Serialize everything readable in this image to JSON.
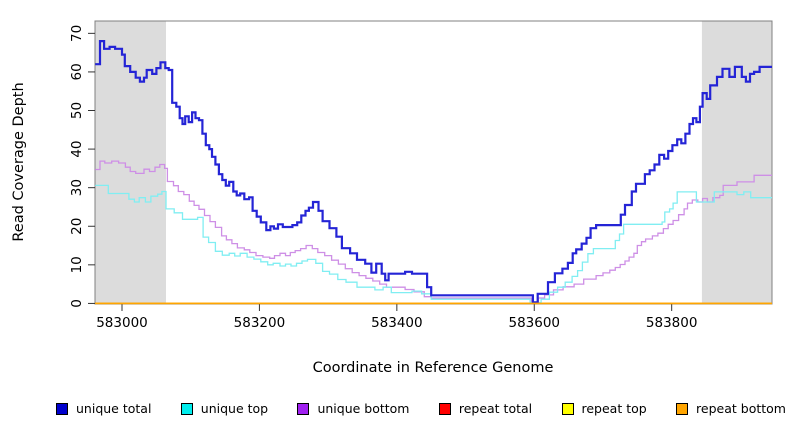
{
  "legend": {
    "items": [
      {
        "label": "unique total",
        "color": "#0000cd"
      },
      {
        "label": "unique top",
        "color": "#00eeee"
      },
      {
        "label": "unique bottom",
        "color": "#a020f0"
      },
      {
        "label": "repeat total",
        "color": "#ff0000"
      },
      {
        "label": "repeat top",
        "color": "#ffff00"
      },
      {
        "label": "repeat bottom",
        "color": "#ffa500"
      }
    ]
  },
  "chart_data": {
    "type": "line",
    "step": true,
    "title": "",
    "xlabel": "Coordinate in Reference Genome",
    "ylabel": "Read Coverage Depth",
    "xlim": [
      582960.7,
      583946
    ],
    "ylim": [
      -0.15,
      73.2
    ],
    "x_ticks": [
      583000,
      583200,
      583400,
      583600,
      583800
    ],
    "y_ticks": [
      0,
      10,
      20,
      30,
      40,
      50,
      60,
      70
    ],
    "grid": false,
    "legend_position": "bottom",
    "region_color": "#dcdcdc",
    "shaded_regions": [
      {
        "x0": 582961,
        "x1": 583064
      },
      {
        "x0": 583844,
        "x1": 583946
      }
    ],
    "series": [
      {
        "name": "repeat total",
        "color": "#ff0000",
        "width": 1.3,
        "points": [
          [
            582961,
            0
          ],
          [
            583946,
            0
          ]
        ]
      },
      {
        "name": "repeat top",
        "color": "#ffff00",
        "width": 1.3,
        "points": [
          [
            582961,
            0
          ],
          [
            583946,
            0
          ]
        ]
      },
      {
        "name": "unique bottom",
        "color": "#ce8fe6",
        "width": 1.3,
        "points": [
          [
            582961,
            34.7
          ],
          [
            582968,
            36.9
          ],
          [
            582975,
            36.4
          ],
          [
            582985,
            36.9
          ],
          [
            582995,
            36.4
          ],
          [
            583005,
            35.3
          ],
          [
            583012,
            34.2
          ],
          [
            583020,
            33.7
          ],
          [
            583032,
            34.8
          ],
          [
            583040,
            34.2
          ],
          [
            583048,
            35.3
          ],
          [
            583055,
            36
          ],
          [
            583062,
            35
          ],
          [
            583066,
            31.6
          ],
          [
            583075,
            30.5
          ],
          [
            583082,
            29
          ],
          [
            583090,
            28.2
          ],
          [
            583098,
            26.5
          ],
          [
            583105,
            25.4
          ],
          [
            583112,
            24.4
          ],
          [
            583120,
            22.8
          ],
          [
            583128,
            21.2
          ],
          [
            583136,
            19.7
          ],
          [
            583145,
            17.5
          ],
          [
            583152,
            16.5
          ],
          [
            583160,
            15.5
          ],
          [
            583168,
            14.4
          ],
          [
            583178,
            13.9
          ],
          [
            583186,
            13.2
          ],
          [
            583195,
            12.4
          ],
          [
            583205,
            12
          ],
          [
            583215,
            11.7
          ],
          [
            583222,
            12.4
          ],
          [
            583230,
            13
          ],
          [
            583238,
            12.4
          ],
          [
            583245,
            13.2
          ],
          [
            583252,
            13.7
          ],
          [
            583260,
            14.2
          ],
          [
            583268,
            15
          ],
          [
            583277,
            14.2
          ],
          [
            583285,
            13.2
          ],
          [
            583295,
            12.4
          ],
          [
            583305,
            11.2
          ],
          [
            583315,
            10.2
          ],
          [
            583325,
            9
          ],
          [
            583335,
            8
          ],
          [
            583345,
            7.2
          ],
          [
            583355,
            6.5
          ],
          [
            583365,
            5.8
          ],
          [
            583375,
            5
          ],
          [
            583385,
            4.2
          ],
          [
            583400,
            4.2
          ],
          [
            583412,
            3.6
          ],
          [
            583425,
            3
          ],
          [
            583440,
            1.75
          ],
          [
            583450,
            1.4
          ],
          [
            583596,
            0.3
          ],
          [
            583606,
            1.4
          ],
          [
            583615,
            2.2
          ],
          [
            583628,
            3.5
          ],
          [
            583642,
            4.3
          ],
          [
            583658,
            5
          ],
          [
            583672,
            6.3
          ],
          [
            583690,
            7.2
          ],
          [
            583700,
            7.9
          ],
          [
            583710,
            8.6
          ],
          [
            583718,
            9.3
          ],
          [
            583725,
            10.1
          ],
          [
            583732,
            11
          ],
          [
            583738,
            12
          ],
          [
            583745,
            13
          ],
          [
            583750,
            15
          ],
          [
            583756,
            16
          ],
          [
            583762,
            16.7
          ],
          [
            583772,
            17.5
          ],
          [
            583780,
            18.2
          ],
          [
            583788,
            19.4
          ],
          [
            583795,
            20.5
          ],
          [
            583802,
            21.5
          ],
          [
            583810,
            23
          ],
          [
            583818,
            24.5
          ],
          [
            583823,
            26
          ],
          [
            583830,
            26.8
          ],
          [
            583838,
            26.3
          ],
          [
            583845,
            27.2
          ],
          [
            583852,
            26.3
          ],
          [
            583860,
            27.4
          ],
          [
            583870,
            28
          ],
          [
            583875,
            30.6
          ],
          [
            583895,
            31.5
          ],
          [
            583920,
            33.2
          ],
          [
            583946,
            33.2
          ]
        ]
      },
      {
        "name": "unique top",
        "color": "#80eef2",
        "width": 1.3,
        "points": [
          [
            582961,
            30.6
          ],
          [
            582972,
            30.6
          ],
          [
            582980,
            28.5
          ],
          [
            583002,
            28.5
          ],
          [
            583010,
            27
          ],
          [
            583018,
            26.3
          ],
          [
            583025,
            27.4
          ],
          [
            583034,
            26.3
          ],
          [
            583042,
            27.8
          ],
          [
            583052,
            28.3
          ],
          [
            583058,
            29
          ],
          [
            583064,
            24.5
          ],
          [
            583076,
            23.5
          ],
          [
            583088,
            21.8
          ],
          [
            583102,
            21.8
          ],
          [
            583110,
            22.3
          ],
          [
            583118,
            17.2
          ],
          [
            583126,
            15.8
          ],
          [
            583136,
            13.5
          ],
          [
            583146,
            12.5
          ],
          [
            583156,
            13
          ],
          [
            583164,
            12.3
          ],
          [
            583172,
            13
          ],
          [
            583182,
            12
          ],
          [
            583192,
            11.5
          ],
          [
            583202,
            10.8
          ],
          [
            583212,
            10
          ],
          [
            583220,
            10.4
          ],
          [
            583230,
            9.7
          ],
          [
            583238,
            10.2
          ],
          [
            583246,
            9.7
          ],
          [
            583254,
            10.4
          ],
          [
            583262,
            11
          ],
          [
            583270,
            11.4
          ],
          [
            583282,
            10.4
          ],
          [
            583292,
            8.3
          ],
          [
            583302,
            7.6
          ],
          [
            583314,
            6.2
          ],
          [
            583326,
            5.5
          ],
          [
            583342,
            4.2
          ],
          [
            583358,
            4.2
          ],
          [
            583368,
            3.5
          ],
          [
            583380,
            4.2
          ],
          [
            583392,
            2.8
          ],
          [
            583422,
            3.2
          ],
          [
            583436,
            2.5
          ],
          [
            583450,
            1.1
          ],
          [
            583594,
            0.2
          ],
          [
            583610,
            1.1
          ],
          [
            583622,
            2.9
          ],
          [
            583634,
            4.2
          ],
          [
            583645,
            5.5
          ],
          [
            583655,
            7
          ],
          [
            583663,
            8.5
          ],
          [
            583670,
            10.7
          ],
          [
            583678,
            12.9
          ],
          [
            583686,
            14.2
          ],
          [
            583714,
            14.2
          ],
          [
            583718,
            16.3
          ],
          [
            583724,
            18
          ],
          [
            583730,
            20.5
          ],
          [
            583786,
            21.1
          ],
          [
            583790,
            23.7
          ],
          [
            583797,
            24.5
          ],
          [
            583802,
            26
          ],
          [
            583808,
            28.9
          ],
          [
            583832,
            28.9
          ],
          [
            583836,
            26.3
          ],
          [
            583858,
            26.3
          ],
          [
            583862,
            28.9
          ],
          [
            583888,
            28.9
          ],
          [
            583895,
            28.2
          ],
          [
            583905,
            28.9
          ],
          [
            583915,
            27.4
          ],
          [
            583946,
            27.4
          ]
        ]
      },
      {
        "name": "unique total",
        "color": "#2424d6",
        "width": 2.2,
        "points": [
          [
            582961,
            62
          ],
          [
            582968,
            68
          ],
          [
            582974,
            66
          ],
          [
            582982,
            66.5
          ],
          [
            582990,
            66
          ],
          [
            583000,
            64.5
          ],
          [
            583004,
            61.5
          ],
          [
            583012,
            60
          ],
          [
            583020,
            58.5
          ],
          [
            583026,
            57.5
          ],
          [
            583032,
            58.5
          ],
          [
            583036,
            60.5
          ],
          [
            583044,
            59.5
          ],
          [
            583050,
            61
          ],
          [
            583056,
            62.5
          ],
          [
            583063,
            61
          ],
          [
            583068,
            60.5
          ],
          [
            583073,
            52
          ],
          [
            583079,
            51
          ],
          [
            583084,
            48
          ],
          [
            583088,
            46.5
          ],
          [
            583092,
            48.5
          ],
          [
            583097,
            47
          ],
          [
            583102,
            49.5
          ],
          [
            583107,
            48
          ],
          [
            583112,
            47.5
          ],
          [
            583117,
            44
          ],
          [
            583122,
            41
          ],
          [
            583127,
            40
          ],
          [
            583131,
            38
          ],
          [
            583136,
            36
          ],
          [
            583141,
            33.5
          ],
          [
            583146,
            32
          ],
          [
            583151,
            30.5
          ],
          [
            583156,
            31.5
          ],
          [
            583162,
            29
          ],
          [
            583167,
            28
          ],
          [
            583172,
            28.5
          ],
          [
            583178,
            27
          ],
          [
            583185,
            27.5
          ],
          [
            583190,
            24
          ],
          [
            583196,
            22.5
          ],
          [
            583202,
            21
          ],
          [
            583210,
            19
          ],
          [
            583216,
            20
          ],
          [
            583221,
            19.4
          ],
          [
            583227,
            20.5
          ],
          [
            583234,
            19.8
          ],
          [
            583248,
            20.3
          ],
          [
            583255,
            21
          ],
          [
            583261,
            22.8
          ],
          [
            583267,
            24
          ],
          [
            583272,
            24.8
          ],
          [
            583278,
            26.3
          ],
          [
            583286,
            24
          ],
          [
            583292,
            21.3
          ],
          [
            583302,
            19.5
          ],
          [
            583312,
            17.3
          ],
          [
            583320,
            14.3
          ],
          [
            583332,
            13
          ],
          [
            583342,
            11.3
          ],
          [
            583354,
            10.3
          ],
          [
            583363,
            8
          ],
          [
            583370,
            10.3
          ],
          [
            583378,
            7.7
          ],
          [
            583383,
            6
          ],
          [
            583388,
            7.7
          ],
          [
            583412,
            8.2
          ],
          [
            583422,
            7.7
          ],
          [
            583444,
            4.2
          ],
          [
            583450,
            2.1
          ],
          [
            583594,
            2.1
          ],
          [
            583598,
            0.3
          ],
          [
            583605,
            2.5
          ],
          [
            583620,
            5.5
          ],
          [
            583630,
            7.8
          ],
          [
            583641,
            9
          ],
          [
            583649,
            10.5
          ],
          [
            583656,
            13
          ],
          [
            583661,
            14
          ],
          [
            583669,
            15.5
          ],
          [
            583676,
            17
          ],
          [
            583682,
            19.5
          ],
          [
            583690,
            20.3
          ],
          [
            583722,
            20.3
          ],
          [
            583726,
            23
          ],
          [
            583732,
            25.5
          ],
          [
            583742,
            29
          ],
          [
            583748,
            31
          ],
          [
            583761,
            33.5
          ],
          [
            583768,
            34.5
          ],
          [
            583775,
            36
          ],
          [
            583782,
            38.5
          ],
          [
            583789,
            37.5
          ],
          [
            583795,
            39.5
          ],
          [
            583801,
            41
          ],
          [
            583808,
            42.5
          ],
          [
            583814,
            41.5
          ],
          [
            583820,
            44
          ],
          [
            583826,
            46.5
          ],
          [
            583831,
            48
          ],
          [
            583836,
            47
          ],
          [
            583841,
            51
          ],
          [
            583845,
            54.5
          ],
          [
            583851,
            53
          ],
          [
            583856,
            56.5
          ],
          [
            583866,
            58.7
          ],
          [
            583874,
            60.8
          ],
          [
            583884,
            58.7
          ],
          [
            583892,
            61.3
          ],
          [
            583902,
            58.7
          ],
          [
            583908,
            57.5
          ],
          [
            583914,
            59.5
          ],
          [
            583920,
            60
          ],
          [
            583928,
            61.3
          ],
          [
            583946,
            61.3
          ]
        ]
      },
      {
        "name": "repeat bottom",
        "color": "#ffa500",
        "width": 1.6,
        "points": [
          [
            582961,
            0
          ],
          [
            583946,
            0
          ]
        ]
      }
    ]
  }
}
